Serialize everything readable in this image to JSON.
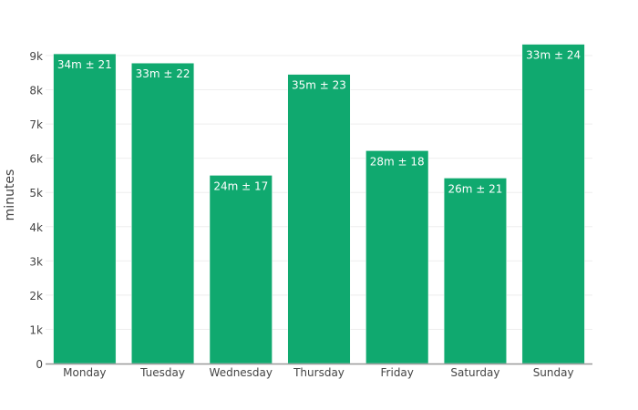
{
  "chart_data": {
    "type": "bar",
    "title": "",
    "xlabel": "",
    "ylabel": "minutes",
    "categories": [
      "Monday",
      "Tuesday",
      "Wednesday",
      "Thursday",
      "Friday",
      "Saturday",
      "Sunday"
    ],
    "values": [
      9050,
      8780,
      5500,
      8450,
      6220,
      5420,
      9330
    ],
    "bar_labels": [
      "34m ± 21",
      "33m ± 22",
      "24m ± 17",
      "35m ± 23",
      "28m ± 18",
      "26m ± 21",
      "33m ± 24"
    ],
    "ylim": [
      0,
      9500
    ],
    "yticks": [
      0,
      1000,
      2000,
      3000,
      4000,
      5000,
      6000,
      7000,
      8000,
      9000
    ],
    "ytick_labels": [
      "0",
      "1k",
      "2k",
      "3k",
      "4k",
      "5k",
      "6k",
      "7k",
      "8k",
      "9k"
    ],
    "grid": true,
    "legend": null,
    "colors": {
      "bar": "#10a96f",
      "grid": "#eeeeee",
      "axis": "#999999",
      "label": "#ffffff",
      "tick": "#444444"
    }
  }
}
